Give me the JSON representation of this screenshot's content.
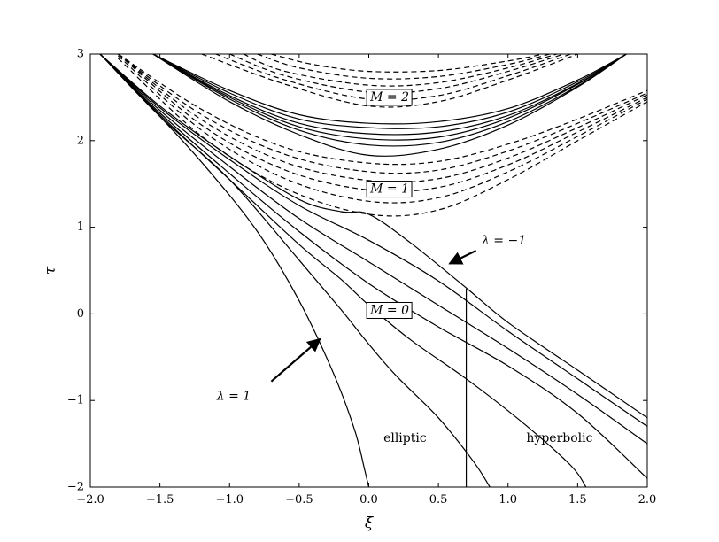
{
  "chart_data": {
    "type": "line",
    "title": "",
    "xlabel": "ξ",
    "ylabel": "τ",
    "xlim": [
      -2.0,
      2.0
    ],
    "ylim": [
      -2,
      3
    ],
    "xticks": [
      "−2.0",
      "−1.5",
      "−1.0",
      "−0.5",
      "0.0",
      "0.5",
      "1.0",
      "1.5",
      "2.0"
    ],
    "yticks": [
      "−2",
      "−1",
      "0",
      "1",
      "2",
      "3"
    ],
    "grid": false,
    "legend": "none",
    "boxed_labels": [
      {
        "text": "M = 2",
        "x": 0.15,
        "y": 2.5
      },
      {
        "text": "M = 1",
        "x": 0.15,
        "y": 1.44
      },
      {
        "text": "M = 0",
        "x": 0.15,
        "y": 0.04
      }
    ],
    "annotations": [
      {
        "text": "λ = 1",
        "x": -0.97,
        "y": -0.95
      },
      {
        "text": "λ = −1",
        "x": 0.97,
        "y": 0.84
      }
    ],
    "region_labels": [
      {
        "text": "elliptic",
        "x": 0.26,
        "y": -1.44
      },
      {
        "text": "hyperbolic",
        "x": 1.37,
        "y": -1.44
      }
    ],
    "arrows": [
      {
        "from": [
          -0.7,
          -0.78
        ],
        "to": [
          -0.35,
          -0.29
        ]
      },
      {
        "from": [
          0.77,
          0.73
        ],
        "to": [
          0.58,
          0.58
        ]
      }
    ],
    "divider": {
      "x": 0.7,
      "y_from": -2,
      "y_to": 0.29
    },
    "series": [
      {
        "style": "solid",
        "group": "M=0",
        "x": [
          -1.93,
          -1.6,
          -1.2,
          -0.8,
          -0.5,
          -0.25,
          -0.1,
          -0.03,
          0.0
        ],
        "y": [
          3.0,
          2.45,
          1.75,
          0.95,
          0.15,
          -0.7,
          -1.35,
          -1.8,
          -2.0
        ]
      },
      {
        "style": "solid",
        "group": "M=0",
        "x": [
          -1.93,
          -1.5,
          -1.0,
          -0.5,
          -0.2,
          0.0,
          0.2,
          0.5,
          0.75,
          0.87
        ],
        "y": [
          3.0,
          2.28,
          1.55,
          0.62,
          0.05,
          -0.35,
          -0.72,
          -1.2,
          -1.7,
          -2.0
        ]
      },
      {
        "style": "solid",
        "group": "M=0",
        "x": [
          -1.93,
          -1.5,
          -1.0,
          -0.5,
          -0.2,
          0.0,
          0.3,
          0.7,
          1.1,
          1.45,
          1.56
        ],
        "y": [
          3.0,
          2.3,
          1.55,
          0.8,
          0.4,
          0.1,
          -0.3,
          -0.75,
          -1.25,
          -1.75,
          -2.0
        ]
      },
      {
        "style": "solid",
        "group": "M=0",
        "x": [
          -1.93,
          -1.5,
          -1.0,
          -0.5,
          0.0,
          0.5,
          1.0,
          1.5,
          2.0
        ],
        "y": [
          3.0,
          2.32,
          1.62,
          0.95,
          0.35,
          -0.15,
          -0.6,
          -1.15,
          -1.9
        ]
      },
      {
        "style": "solid",
        "group": "M=0",
        "x": [
          -1.93,
          -1.5,
          -1.0,
          -0.5,
          0.0,
          0.5,
          1.0,
          1.5,
          2.0
        ],
        "y": [
          3.0,
          2.35,
          1.7,
          1.1,
          0.6,
          0.1,
          -0.4,
          -0.93,
          -1.5
        ]
      },
      {
        "style": "solid",
        "group": "M=0",
        "x": [
          -1.93,
          -1.5,
          -1.0,
          -0.5,
          0.0,
          0.5,
          1.0,
          1.5,
          2.0
        ],
        "y": [
          3.0,
          2.38,
          1.78,
          1.25,
          0.85,
          0.38,
          -0.2,
          -0.75,
          -1.3
        ]
      },
      {
        "style": "solid",
        "group": "M=0",
        "x": [
          -1.93,
          -1.5,
          -1.0,
          -0.5,
          -0.2,
          0.0,
          0.3,
          0.7,
          1.0,
          1.5,
          2.0
        ],
        "y": [
          3.0,
          2.4,
          1.82,
          1.32,
          1.18,
          1.15,
          0.82,
          0.3,
          -0.1,
          -0.65,
          -1.2
        ]
      },
      {
        "style": "solid",
        "group": "M=2",
        "x": [
          -1.55,
          -1.0,
          -0.5,
          0.0,
          0.5,
          1.0,
          1.5,
          1.85
        ],
        "y": [
          3.0,
          2.45,
          2.07,
          1.83,
          1.9,
          2.18,
          2.62,
          3.0
        ]
      },
      {
        "style": "solid",
        "group": "M=2",
        "x": [
          -1.55,
          -1.0,
          -0.5,
          0.0,
          0.5,
          1.0,
          1.5,
          1.85
        ],
        "y": [
          3.0,
          2.48,
          2.12,
          1.95,
          1.98,
          2.22,
          2.63,
          3.0
        ]
      },
      {
        "style": "solid",
        "group": "M=2",
        "x": [
          -1.55,
          -1.0,
          -0.5,
          0.0,
          0.5,
          1.0,
          1.5,
          1.85
        ],
        "y": [
          3.0,
          2.5,
          2.16,
          2.02,
          2.04,
          2.26,
          2.65,
          3.0
        ]
      },
      {
        "style": "solid",
        "group": "M=2",
        "x": [
          -1.55,
          -1.0,
          -0.5,
          0.0,
          0.5,
          1.0,
          1.5,
          1.85
        ],
        "y": [
          3.0,
          2.52,
          2.2,
          2.08,
          2.1,
          2.29,
          2.66,
          3.0
        ]
      },
      {
        "style": "solid",
        "group": "M=2",
        "x": [
          -1.55,
          -1.0,
          -0.5,
          0.0,
          0.5,
          1.0,
          1.5,
          1.85
        ],
        "y": [
          3.0,
          2.55,
          2.25,
          2.15,
          2.16,
          2.33,
          2.68,
          3.0
        ]
      },
      {
        "style": "solid",
        "group": "M=2",
        "x": [
          -1.55,
          -1.0,
          -0.5,
          0.0,
          0.5,
          1.0,
          1.5,
          1.85
        ],
        "y": [
          3.0,
          2.58,
          2.3,
          2.2,
          2.22,
          2.37,
          2.7,
          3.0
        ]
      },
      {
        "style": "dashed",
        "group": "M=1",
        "x": [
          -1.8,
          -1.2,
          -0.6,
          0.0,
          0.5,
          1.0,
          1.5,
          2.0
        ],
        "y": [
          2.95,
          2.05,
          1.45,
          1.15,
          1.2,
          1.55,
          2.0,
          2.45
        ]
      },
      {
        "style": "dashed",
        "group": "M=1",
        "x": [
          -1.8,
          -1.2,
          -0.6,
          0.0,
          0.5,
          1.0,
          1.5,
          2.0
        ],
        "y": [
          2.98,
          2.12,
          1.56,
          1.3,
          1.34,
          1.64,
          2.05,
          2.48
        ]
      },
      {
        "style": "dashed",
        "group": "M=1",
        "x": [
          -1.8,
          -1.2,
          -0.6,
          0.0,
          0.5,
          1.0,
          1.5,
          2.0
        ],
        "y": [
          3.0,
          2.18,
          1.66,
          1.43,
          1.46,
          1.72,
          2.1,
          2.5
        ]
      },
      {
        "style": "dashed",
        "group": "M=1",
        "x": [
          -1.8,
          -1.2,
          -0.6,
          0.0,
          0.5,
          1.0,
          1.5,
          2.0
        ],
        "y": [
          3.0,
          2.24,
          1.75,
          1.54,
          1.56,
          1.8,
          2.15,
          2.53
        ]
      },
      {
        "style": "dashed",
        "group": "M=1",
        "x": [
          -1.8,
          -1.2,
          -0.6,
          0.0,
          0.5,
          1.0,
          1.5,
          2.0
        ],
        "y": [
          3.0,
          2.3,
          1.84,
          1.64,
          1.66,
          1.88,
          2.2,
          2.55
        ]
      },
      {
        "style": "dashed",
        "group": "M=1",
        "x": [
          -1.8,
          -1.2,
          -0.6,
          0.0,
          0.5,
          1.0,
          1.5,
          2.0
        ],
        "y": [
          3.0,
          2.36,
          1.92,
          1.74,
          1.76,
          1.96,
          2.25,
          2.58
        ]
      },
      {
        "style": "dashed",
        "group": "M=2",
        "x": [
          -1.2,
          -0.6,
          0.0,
          0.5,
          1.0,
          1.5
        ],
        "y": [
          3.0,
          2.65,
          2.4,
          2.45,
          2.7,
          3.0
        ]
      },
      {
        "style": "dashed",
        "group": "M=2",
        "x": [
          -1.1,
          -0.6,
          0.0,
          0.5,
          1.0,
          1.45
        ],
        "y": [
          3.0,
          2.7,
          2.48,
          2.52,
          2.75,
          3.0
        ]
      },
      {
        "style": "dashed",
        "group": "M=2",
        "x": [
          -1.0,
          -0.6,
          0.0,
          0.5,
          1.0,
          1.4
        ],
        "y": [
          3.0,
          2.75,
          2.56,
          2.6,
          2.8,
          3.0
        ]
      },
      {
        "style": "dashed",
        "group": "M=2",
        "x": [
          -0.9,
          -0.6,
          0.0,
          0.5,
          1.0,
          1.35
        ],
        "y": [
          3.0,
          2.8,
          2.64,
          2.67,
          2.84,
          3.0
        ]
      },
      {
        "style": "dashed",
        "group": "M=2",
        "x": [
          -0.8,
          -0.5,
          0.0,
          0.5,
          1.0,
          1.3
        ],
        "y": [
          3.0,
          2.84,
          2.72,
          2.74,
          2.88,
          3.0
        ]
      },
      {
        "style": "dashed",
        "group": "M=2",
        "x": [
          -0.7,
          -0.4,
          0.0,
          0.5,
          1.0,
          1.25
        ],
        "y": [
          3.0,
          2.88,
          2.8,
          2.81,
          2.92,
          3.0
        ]
      }
    ]
  }
}
